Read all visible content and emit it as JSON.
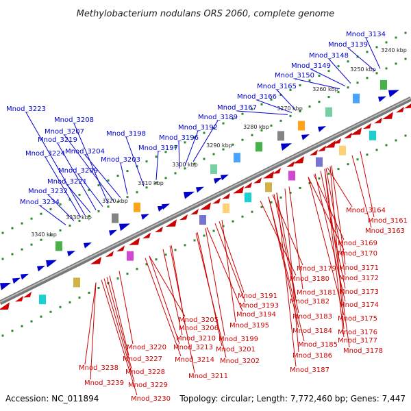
{
  "title": "Methylobacterium nodulans ORS 2060, complete genome",
  "footer": {
    "accession": "Accession: NC_011894",
    "summary": "Topology: circular; Length: 7,772,460 bp; Genes: 7,447"
  },
  "colors": {
    "forward": "#0000cc",
    "reverse": "#cc0000",
    "backbone": "#888888",
    "tick_dots": "#2a8a2a"
  },
  "ticks": [
    "3240 kbp",
    "3250 kbp",
    "3260 kbp",
    "3270 kbp",
    "3280 kbp",
    "3290 kbp",
    "3300 kbp",
    "3310 kbp",
    "3320 kbp",
    "3330 kbp",
    "3340 kbp"
  ],
  "forward_genes": [
    "Mnod_3134",
    "Mnod_3139",
    "Mnod_3148",
    "Mnod_3149",
    "Mnod_3150",
    "Mnod_3165",
    "Mnod_3166",
    "Mnod_3167",
    "Mnod_3189",
    "Mnod_3192",
    "Mnod_3196",
    "Mnod_3197",
    "Mnod_3198",
    "Mnod_3203",
    "Mnod_3204",
    "Mnod_3207",
    "Mnod_3208",
    "Mnod_3209",
    "Mnod_3219",
    "Mnod_3221",
    "Mnod_3223",
    "Mnod_3224",
    "Mnod_3232",
    "Mnod_3234"
  ],
  "reverse_genes": [
    "Mnod_3161",
    "Mnod_3163",
    "Mnod_3164",
    "Mnod_3169",
    "Mnod_3170",
    "Mnod_3171",
    "Mnod_3172",
    "Mnod_3173",
    "Mnod_3174",
    "Mnod_3175",
    "Mnod_3176",
    "Mnod_3177",
    "Mnod_3178",
    "Mnod_3179",
    "Mnod_3180",
    "Mnod_3181",
    "Mnod_3182",
    "Mnod_3183",
    "Mnod_3184",
    "Mnod_3185",
    "Mnod_3186",
    "Mnod_3187",
    "Mnod_3191",
    "Mnod_3193",
    "Mnod_3194",
    "Mnod_3195",
    "Mnod_3199",
    "Mnod_3201",
    "Mnod_3202",
    "Mnod_3205",
    "Mnod_3206",
    "Mnod_3210",
    "Mnod_3211",
    "Mnod_3213",
    "Mnod_3214",
    "Mnod_3220",
    "Mnod_3227",
    "Mnod_3228",
    "Mnod_3229",
    "Mnod_3230",
    "Mnod_3238",
    "Mnod_3239"
  ]
}
